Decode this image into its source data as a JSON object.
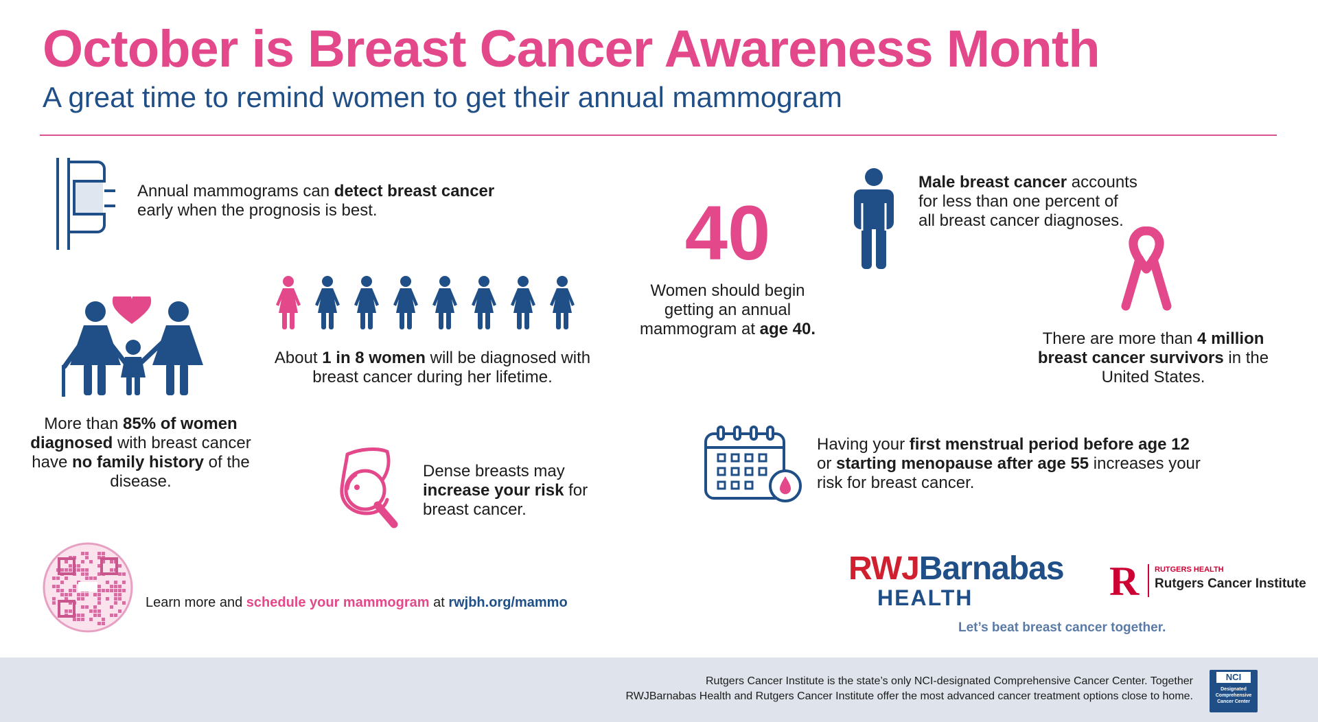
{
  "header": {
    "title": "October is Breast Cancer Awareness Month",
    "subtitle": "A great time to remind women to get their annual mammogram"
  },
  "facts": {
    "mammogram": {
      "a": "Annual mammograms can ",
      "b": "detect breast cancer",
      "c": " early when the prognosis is best."
    },
    "male": {
      "a": "Male breast cancer",
      "b": " accounts for less than one percent of all breast cancer diagnoses."
    },
    "forty": {
      "number": "40",
      "a": "Women should begin getting an annual mammogram at ",
      "b": "age 40."
    },
    "survivors": {
      "a": "There are more than ",
      "b": "4 million breast cancer survivors",
      "c": " in the United States."
    },
    "one_in_eight": {
      "a": "About ",
      "b": "1 in 8 women",
      "c": " will be diagnosed with breast cancer during her lifetime."
    },
    "family": {
      "a": "More than ",
      "b": "85% of women diagnosed",
      "c": " with breast cancer have ",
      "d": "no family history",
      "e": " of the disease."
    },
    "dense": {
      "a": "Dense breasts may ",
      "b": "increase your risk",
      "c": " for breast cancer."
    },
    "menses": {
      "a": "Having your ",
      "b": "first menstrual period before age 12",
      "c": " or ",
      "d": "starting menopause after age 55",
      "e": " increases your risk for breast cancer."
    }
  },
  "cta": {
    "a": "Learn more and ",
    "b": "schedule your mammogram",
    "c": " at ",
    "d": "rwjbh.org/mammo"
  },
  "logos": {
    "rwj_red": "RWJ",
    "rwj_blue": "Barnabas",
    "rwj_health": "HEALTH",
    "tagline": "Let’s beat breast cancer together.",
    "rutgers_r": "R",
    "rutgers_small": "RUTGERS HEALTH",
    "rutgers_name": "Rutgers Cancer Institute"
  },
  "footer": {
    "line1": "Rutgers Cancer Institute is the state’s only NCI-designated Comprehensive Cancer Center. Together",
    "line2": "RWJBarnabas Health and Rutgers Cancer Institute offer the most advanced cancer treatment options close to home.",
    "nci_badge": "NCI",
    "nci_sub": "Designated Comprehensive Cancer Center"
  },
  "colors": {
    "pink": "#e3498a",
    "navy": "#1f4f86",
    "footer_bg": "#dfe4ec"
  },
  "icons": [
    "mammogram-machine-icon",
    "family-heart-icon",
    "women-row-icon",
    "male-figure-icon",
    "pink-ribbon-icon",
    "breast-magnifier-icon",
    "calendar-drop-icon",
    "qr-code"
  ]
}
